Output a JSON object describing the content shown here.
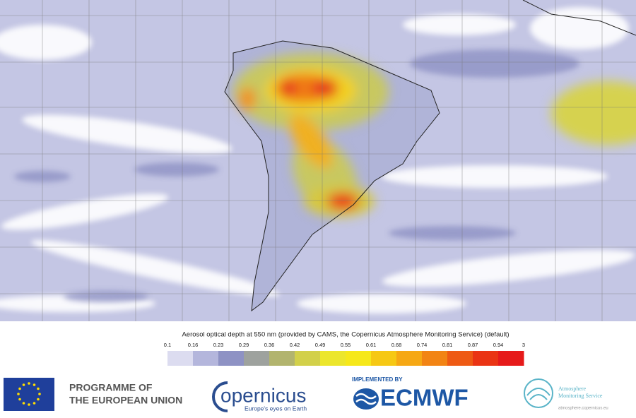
{
  "colorbar": {
    "title": "Aerosol optical depth at 550 nm (provided by CAMS, the Copernicus Atmosphere Monitoring Service) (default)",
    "ticks": [
      "0.1",
      "0.16",
      "0.23",
      "0.29",
      "0.36",
      "0.42",
      "0.49",
      "0.55",
      "0.61",
      "0.68",
      "0.74",
      "0.81",
      "0.87",
      "0.94",
      "3"
    ],
    "colors": [
      "#dcdcf0",
      "#b4b6dc",
      "#8e92c4",
      "#9ea29e",
      "#b2b46e",
      "#d2d04a",
      "#ece62c",
      "#f6e81a",
      "#f6c814",
      "#f6a814",
      "#f28414",
      "#ee5a14",
      "#ea3414",
      "#e61a1a"
    ]
  },
  "footer": {
    "eu": [
      "PROGRAMME OF",
      "THE EUROPEAN UNION"
    ],
    "copernicus": {
      "name": "opernicus",
      "tagline": "Europe's eyes on Earth"
    },
    "implemented_by": "IMPLEMENTED BY",
    "ecmwf": "ECMWF",
    "cams": {
      "name": [
        "Atmosphere",
        "Monitoring Service"
      ],
      "url": "atmosphere.copernicus.eu"
    }
  }
}
